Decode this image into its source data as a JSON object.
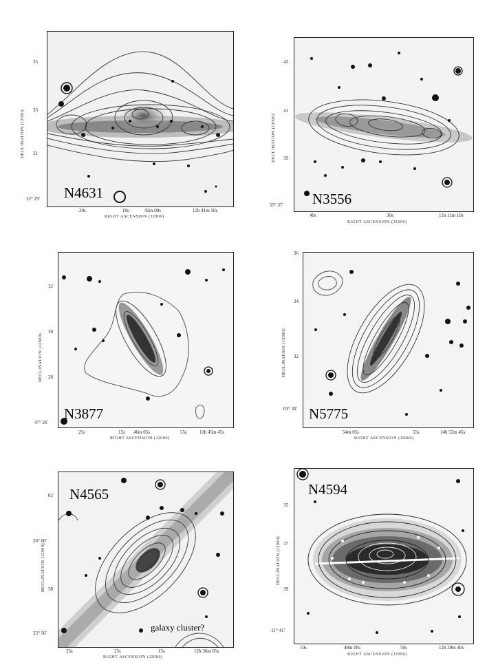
{
  "panels": [
    {
      "id": "n4631",
      "name": "N4631",
      "ylabel": "DECLINATION (J2000)",
      "xlabel": "RIGHT ASCENSION (J2000)",
      "yticks": [
        "35",
        "33",
        "31",
        "32° 29'"
      ],
      "xticks": [
        "20s",
        "10s",
        "42m 00s",
        "12h 41m 50s"
      ]
    },
    {
      "id": "n3556",
      "name": "N3556",
      "ylabel": "DECLINATION (J2000)",
      "xlabel": "RIGHT ASCENSION (J2000)",
      "yticks": [
        "43",
        "41",
        "39",
        "55° 37'"
      ],
      "xticks": [
        "40s",
        "30s",
        "11h 11m 10s"
      ]
    },
    {
      "id": "n3877",
      "name": "N3877",
      "ylabel": "DECLINATION (J2000)",
      "xlabel": "RIGHT ASCENSION (J2000)",
      "yticks": [
        "32",
        "30",
        "28",
        "47° 26'"
      ],
      "xticks": [
        "25s",
        "15s",
        "46m 05s",
        "55s",
        "11h 45m 45s"
      ]
    },
    {
      "id": "n5775",
      "name": "N5775",
      "ylabel": "DECLINATION (J2000)",
      "xlabel": "RIGHT ASCENSION (J2000)",
      "yticks": [
        "36",
        "34",
        "32",
        "03° 30'"
      ],
      "xticks": [
        "54m 05s",
        "55s",
        "14h 53m 45s"
      ]
    },
    {
      "id": "n4565",
      "name": "N4565",
      "ylabel": "DECLINATION (J2000)",
      "xlabel": "RIGHT ASCENSION (J2000)",
      "yticks": [
        "02",
        "26° 00'",
        "58",
        "25° 56'"
      ],
      "xticks": [
        "35s",
        "25s",
        "15s",
        "12h 36m 05s"
      ],
      "annotation": "galaxy cluster?"
    },
    {
      "id": "n4594",
      "name": "N4594",
      "ylabel": "DECLINATION (J2000)",
      "xlabel": "RIGHT ASCENSION (J2000)",
      "yticks": [
        "35",
        "37",
        "39",
        "-11° 41'"
      ],
      "xticks": [
        "10s",
        "40m 00s",
        "50s",
        "12h 39m 40s"
      ]
    }
  ]
}
